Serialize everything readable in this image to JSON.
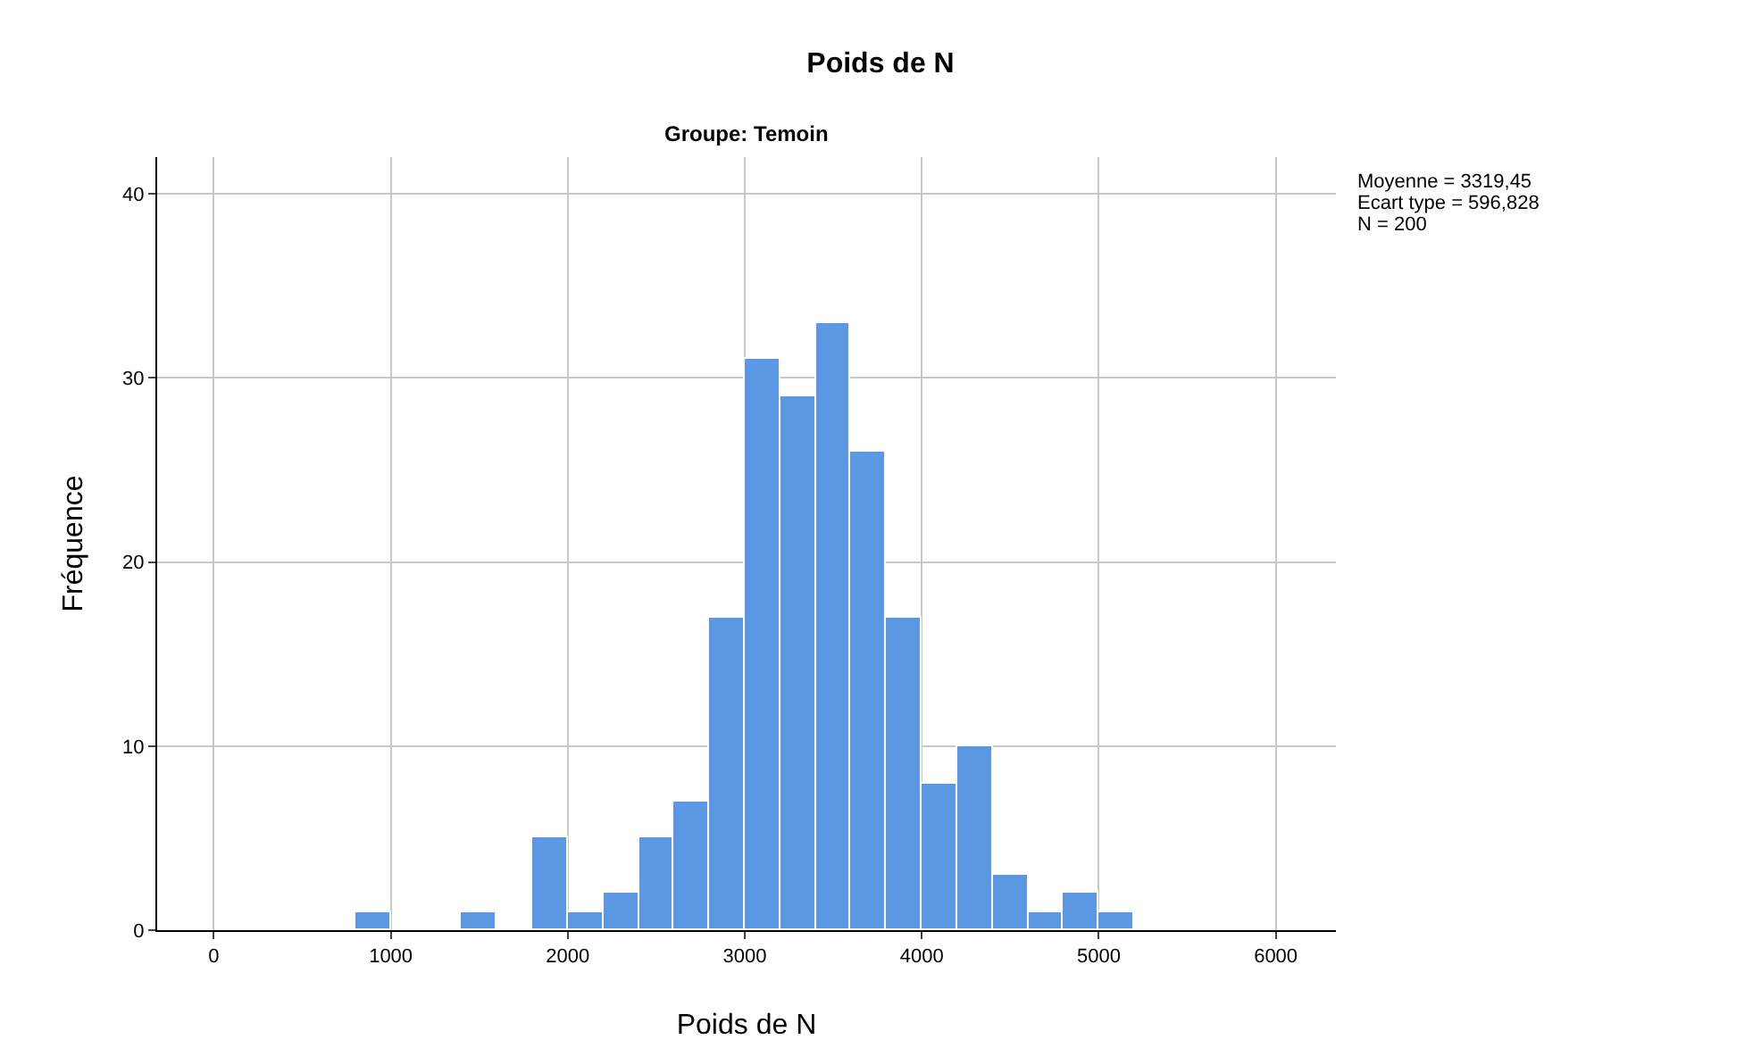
{
  "chart_data": {
    "type": "histogram",
    "title": "Poids de N",
    "subtitle": "Groupe: Temoin",
    "xlabel": "Poids de N",
    "ylabel": "Fréquence",
    "bins": [
      800,
      1000,
      1200,
      1400,
      1600,
      1800,
      2000,
      2200,
      2400,
      2600,
      2800,
      3000,
      3200,
      3400,
      3600,
      3800,
      4000,
      4200,
      4400,
      4600,
      4800,
      5000,
      5200
    ],
    "values": [
      1,
      0,
      0,
      1,
      0,
      5,
      1,
      2,
      5,
      7,
      17,
      31,
      29,
      33,
      26,
      17,
      8,
      10,
      3,
      1,
      2,
      1
    ],
    "color": "#5b97e3",
    "xlim": [
      -320,
      6340
    ],
    "xticks": [
      0,
      1000,
      2000,
      3000,
      4000,
      5000,
      6000
    ],
    "ylim": [
      0,
      42
    ],
    "yticks": [
      0,
      10,
      20,
      30,
      40
    ],
    "grid": true,
    "annotations": [
      "Moyenne = 3319,45",
      "Ecart type = 596,828",
      "N = 200"
    ]
  }
}
